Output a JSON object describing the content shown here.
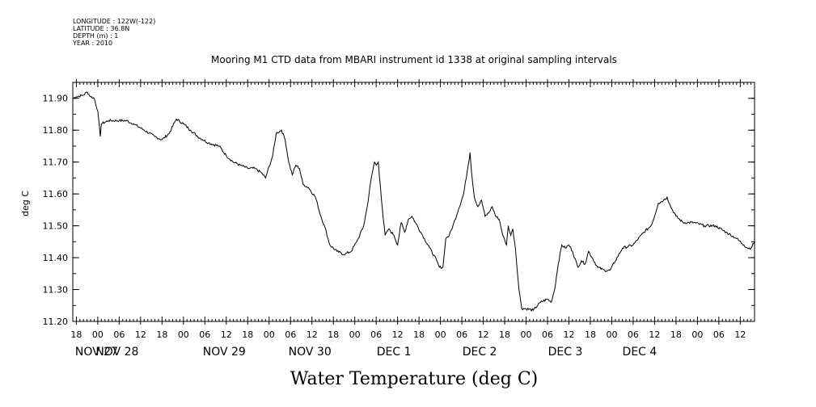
{
  "meta": {
    "longitude": "LONGITUDE : 122W(-122)",
    "latitude": "LATITUDE : 36.8N",
    "depth": "DEPTH (m) : 1",
    "year": "YEAR : 2010"
  },
  "chart_data": {
    "type": "line",
    "title": "Mooring M1 CTD data from MBARI instrument id 1338 at original sampling intervals",
    "bottom_title": "Water Temperature (deg C)",
    "ylabel": "deg C",
    "xlabel": "",
    "ylim": [
      11.2,
      11.95
    ],
    "yticks": [
      "11.20",
      "11.30",
      "11.40",
      "11.50",
      "11.60",
      "11.70",
      "11.80",
      "11.90"
    ],
    "x_unit": "hours after 2010-11-27 18:00",
    "xlim": [
      -1,
      190
    ],
    "hour_ticks": [
      "18",
      "00",
      "06",
      "12",
      "18",
      "00",
      "06",
      "12",
      "18",
      "00",
      "06",
      "12",
      "18",
      "00",
      "06",
      "12",
      "18",
      "00",
      "06",
      "12",
      "18",
      "00",
      "06",
      "12",
      "18",
      "00",
      "06",
      "12",
      "18",
      "00",
      "06",
      "12"
    ],
    "day_labels": [
      "NOV 27",
      "NOV 28",
      "NOV 29",
      "NOV 30",
      "DEC  1",
      "DEC  2",
      "DEC  3",
      "DEC  4"
    ],
    "series": [
      {
        "name": "",
        "points": [
          [
            -1,
            11.9
          ],
          [
            0,
            11.905
          ],
          [
            2,
            11.91
          ],
          [
            3,
            11.92
          ],
          [
            4,
            11.905
          ],
          [
            5,
            11.9
          ],
          [
            6,
            11.86
          ],
          [
            6.7,
            11.78
          ],
          [
            7,
            11.82
          ],
          [
            9,
            11.83
          ],
          [
            12,
            11.83
          ],
          [
            14,
            11.83
          ],
          [
            16,
            11.82
          ],
          [
            19,
            11.8
          ],
          [
            22,
            11.78
          ],
          [
            24,
            11.77
          ],
          [
            26,
            11.79
          ],
          [
            28,
            11.835
          ],
          [
            30,
            11.82
          ],
          [
            32,
            11.8
          ],
          [
            34,
            11.78
          ],
          [
            37,
            11.76
          ],
          [
            40,
            11.75
          ],
          [
            42,
            11.72
          ],
          [
            44,
            11.7
          ],
          [
            46,
            11.69
          ],
          [
            48,
            11.68
          ],
          [
            50,
            11.68
          ],
          [
            52,
            11.665
          ],
          [
            53,
            11.65
          ],
          [
            55,
            11.72
          ],
          [
            56,
            11.79
          ],
          [
            57.5,
            11.8
          ],
          [
            58.5,
            11.77
          ],
          [
            59.5,
            11.7
          ],
          [
            60.5,
            11.66
          ],
          [
            61.5,
            11.69
          ],
          [
            62.5,
            11.68
          ],
          [
            63.5,
            11.63
          ],
          [
            65,
            11.62
          ],
          [
            67,
            11.59
          ],
          [
            68.5,
            11.53
          ],
          [
            69.5,
            11.5
          ],
          [
            71,
            11.44
          ],
          [
            73,
            11.42
          ],
          [
            75,
            11.41
          ],
          [
            77,
            11.42
          ],
          [
            79,
            11.46
          ],
          [
            80.5,
            11.5
          ],
          [
            81.5,
            11.56
          ],
          [
            82.5,
            11.64
          ],
          [
            83.5,
            11.7
          ],
          [
            84,
            11.69
          ],
          [
            84.6,
            11.7
          ],
          [
            85.2,
            11.62
          ],
          [
            86,
            11.52
          ],
          [
            86.5,
            11.47
          ],
          [
            87.5,
            11.49
          ],
          [
            89,
            11.47
          ],
          [
            90,
            11.44
          ],
          [
            91,
            11.51
          ],
          [
            92,
            11.48
          ],
          [
            93,
            11.52
          ],
          [
            94,
            11.53
          ],
          [
            95,
            11.51
          ],
          [
            97,
            11.47
          ],
          [
            99,
            11.43
          ],
          [
            101,
            11.39
          ],
          [
            101.7,
            11.37
          ],
          [
            102.7,
            11.37
          ],
          [
            103.5,
            11.46
          ],
          [
            104.5,
            11.47
          ],
          [
            105.5,
            11.5
          ],
          [
            107,
            11.55
          ],
          [
            108.5,
            11.6
          ],
          [
            109.5,
            11.67
          ],
          [
            110.3,
            11.73
          ],
          [
            110.8,
            11.66
          ],
          [
            111.5,
            11.59
          ],
          [
            112.5,
            11.56
          ],
          [
            113.5,
            11.58
          ],
          [
            114.5,
            11.53
          ],
          [
            115.5,
            11.54
          ],
          [
            116.5,
            11.56
          ],
          [
            117.5,
            11.53
          ],
          [
            118.5,
            11.52
          ],
          [
            119.5,
            11.47
          ],
          [
            120.5,
            11.44
          ],
          [
            121,
            11.5
          ],
          [
            121.7,
            11.47
          ],
          [
            122.3,
            11.49
          ],
          [
            123,
            11.43
          ],
          [
            124,
            11.3
          ],
          [
            124.8,
            11.24
          ],
          [
            126,
            11.24
          ],
          [
            128,
            11.235
          ],
          [
            130,
            11.26
          ],
          [
            132,
            11.27
          ],
          [
            133,
            11.26
          ],
          [
            134,
            11.3
          ],
          [
            135,
            11.38
          ],
          [
            136,
            11.44
          ],
          [
            137,
            11.43
          ],
          [
            138,
            11.44
          ],
          [
            139,
            11.42
          ],
          [
            140.5,
            11.37
          ],
          [
            141.5,
            11.39
          ],
          [
            142.5,
            11.38
          ],
          [
            143.5,
            11.42
          ],
          [
            144.5,
            11.4
          ],
          [
            146,
            11.37
          ],
          [
            148,
            11.36
          ],
          [
            149.5,
            11.36
          ],
          [
            151,
            11.39
          ],
          [
            153,
            11.43
          ],
          [
            156,
            11.44
          ],
          [
            159,
            11.48
          ],
          [
            161,
            11.5
          ],
          [
            162,
            11.53
          ],
          [
            163,
            11.57
          ],
          [
            164.5,
            11.58
          ],
          [
            165.5,
            11.59
          ],
          [
            166.5,
            11.56
          ],
          [
            168,
            11.53
          ],
          [
            170,
            11.51
          ],
          [
            173,
            11.51
          ],
          [
            176,
            11.5
          ],
          [
            179,
            11.5
          ],
          [
            182,
            11.48
          ],
          [
            185,
            11.46
          ],
          [
            187,
            11.44
          ],
          [
            188,
            11.43
          ],
          [
            189,
            11.43
          ],
          [
            190,
            11.45
          ]
        ]
      }
    ],
    "grid": false,
    "line_color": "#000000"
  }
}
